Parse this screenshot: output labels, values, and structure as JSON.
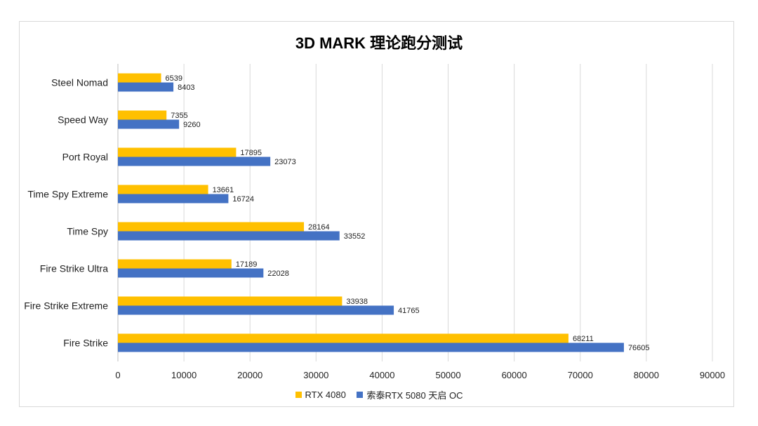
{
  "chart_data": {
    "type": "bar",
    "orientation": "horizontal",
    "title": "3D MARK 理论跑分测试",
    "categories": [
      "Steel Nomad",
      "Speed Way",
      "Port Royal",
      "Time Spy Extreme",
      "Time Spy",
      "Fire Strike Ultra",
      "Fire Strike Extreme",
      "Fire Strike"
    ],
    "series": [
      {
        "name": "RTX 4080",
        "color": "#FFC000",
        "values": [
          6539,
          7355,
          17895,
          13661,
          28164,
          17189,
          33938,
          68211
        ]
      },
      {
        "name": "索泰RTX 5080 天启 OC",
        "color": "#4472C4",
        "values": [
          8403,
          9260,
          23073,
          16724,
          33552,
          22028,
          41765,
          76605
        ]
      }
    ],
    "xlim": [
      0,
      90000
    ],
    "xticks": [
      0,
      10000,
      20000,
      30000,
      40000,
      50000,
      60000,
      70000,
      80000,
      90000
    ],
    "grid": true,
    "legend": "bottom",
    "data_labels": true
  }
}
